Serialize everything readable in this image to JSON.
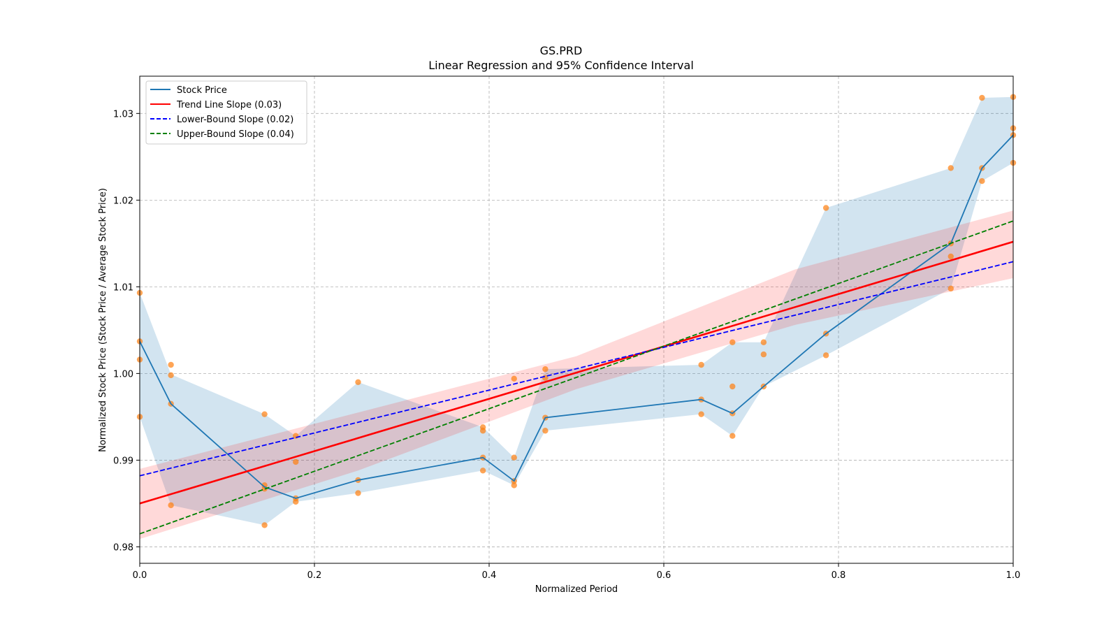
{
  "chart_data": {
    "type": "line",
    "title": "GS.PRD",
    "subtitle": "Linear Regression and 95% Confidence Interval",
    "xlabel": "Normalized Period",
    "ylabel": "Normalized Stock Price (Stock Price / Average Stock Price)",
    "xlim": [
      0.0,
      1.0
    ],
    "ylim": [
      0.9781,
      1.0343
    ],
    "xticks": [
      {
        "value": 0.0,
        "label": "0.0"
      },
      {
        "value": 0.2,
        "label": "0.2"
      },
      {
        "value": 0.4,
        "label": "0.4"
      },
      {
        "value": 0.6,
        "label": "0.6"
      },
      {
        "value": 0.8,
        "label": "0.8"
      },
      {
        "value": 1.0,
        "label": "1.0"
      }
    ],
    "yticks": [
      {
        "value": 0.98,
        "label": "0.98"
      },
      {
        "value": 0.99,
        "label": "0.99"
      },
      {
        "value": 1.0,
        "label": "1.00"
      },
      {
        "value": 1.01,
        "label": "1.01"
      },
      {
        "value": 1.02,
        "label": "1.02"
      },
      {
        "value": 1.03,
        "label": "1.03"
      }
    ],
    "grid": true,
    "legend_position": "top-left",
    "legend": [
      {
        "label": "Stock Price",
        "color": "#1f77b4",
        "dash": "solid"
      },
      {
        "label": "Trend Line Slope (0.03)",
        "color": "#ff0000",
        "dash": "solid"
      },
      {
        "label": "Lower-Bound Slope (0.02)",
        "color": "#0000ff",
        "dash": "dashed"
      },
      {
        "label": "Upper-Bound Slope (0.04)",
        "color": "#008000",
        "dash": "dashed"
      }
    ],
    "colors": {
      "stock_line": "#1f77b4",
      "stock_band": "#1f77b4",
      "points": "#ff7f0e",
      "trend": "#ff0000",
      "trend_band": "#ff0000",
      "lower": "#0000ff",
      "upper": "#008000"
    },
    "stock_series": {
      "x": [
        0.0,
        0.0357,
        0.1429,
        0.1786,
        0.25,
        0.3929,
        0.4286,
        0.4643,
        0.6429,
        0.6786,
        0.7143,
        0.7857,
        0.9286,
        0.9643,
        1.0
      ],
      "mean": [
        1.0037,
        0.9965,
        0.9869,
        0.9856,
        0.9877,
        0.9903,
        0.9876,
        0.9949,
        0.997,
        0.9954,
        0.9985,
        1.0046,
        1.015,
        1.0237,
        1.0275
      ],
      "low": [
        0.995,
        0.9848,
        0.9825,
        0.9852,
        0.9862,
        0.9888,
        0.9871,
        0.9934,
        0.9953,
        0.9928,
        0.9985,
        1.0021,
        1.0098,
        1.0222,
        1.0243
      ],
      "high": [
        1.0093,
        0.9999,
        0.9953,
        0.9928,
        0.999,
        0.9938,
        0.9903,
        1.0005,
        1.001,
        1.0036,
        1.0036,
        1.0191,
        1.0237,
        1.0318,
        1.0319
      ]
    },
    "scatter_points": {
      "x": [
        0.0,
        0.0,
        0.0,
        0.0,
        0.0357,
        0.0357,
        0.0357,
        0.0357,
        0.1429,
        0.1429,
        0.1429,
        0.1429,
        0.1786,
        0.1786,
        0.1786,
        0.1786,
        0.25,
        0.25,
        0.25,
        0.3929,
        0.3929,
        0.3929,
        0.3929,
        0.4286,
        0.4286,
        0.4286,
        0.4286,
        0.4643,
        0.4643,
        0.4643,
        0.4643,
        0.6429,
        0.6429,
        0.6429,
        0.6786,
        0.6786,
        0.6786,
        0.6786,
        0.7143,
        0.7143,
        0.7143,
        0.7857,
        0.7857,
        0.7857,
        0.9286,
        0.9286,
        0.9286,
        0.9286,
        0.9643,
        0.9643,
        0.9643,
        1.0,
        1.0,
        1.0,
        1.0
      ],
      "y": [
        1.0093,
        1.0037,
        1.0016,
        0.995,
        1.001,
        0.9998,
        0.9965,
        0.9848,
        0.9953,
        0.9871,
        0.9867,
        0.9825,
        0.9928,
        0.9898,
        0.9856,
        0.9852,
        0.999,
        0.9877,
        0.9862,
        0.9938,
        0.9934,
        0.9903,
        0.9888,
        0.9994,
        0.9903,
        0.9876,
        0.9871,
        1.0005,
        0.9995,
        0.9949,
        0.9934,
        1.001,
        0.997,
        0.9953,
        1.0036,
        0.9985,
        0.9954,
        0.9928,
        1.0036,
        1.0022,
        0.9985,
        1.0191,
        1.0046,
        1.0021,
        1.0237,
        1.015,
        1.0135,
        1.0098,
        1.0318,
        1.0237,
        1.0222,
        1.0319,
        1.0283,
        1.0275,
        1.0243
      ]
    },
    "trend_line": {
      "x": [
        0.0,
        1.0
      ],
      "y": [
        0.985,
        1.0152
      ]
    },
    "trend_band": {
      "x": [
        0.0,
        0.25,
        0.5,
        0.75,
        1.0
      ],
      "low": [
        0.9809,
        0.9888,
        0.9982,
        1.0056,
        1.011
      ],
      "high": [
        0.989,
        0.9955,
        1.002,
        1.012,
        1.0188
      ]
    },
    "lower_bound_line": {
      "x": [
        0.0,
        1.0
      ],
      "y": [
        0.9882,
        1.0129
      ]
    },
    "upper_bound_line": {
      "x": [
        0.0,
        1.0
      ],
      "y": [
        0.9815,
        1.0176
      ]
    }
  }
}
